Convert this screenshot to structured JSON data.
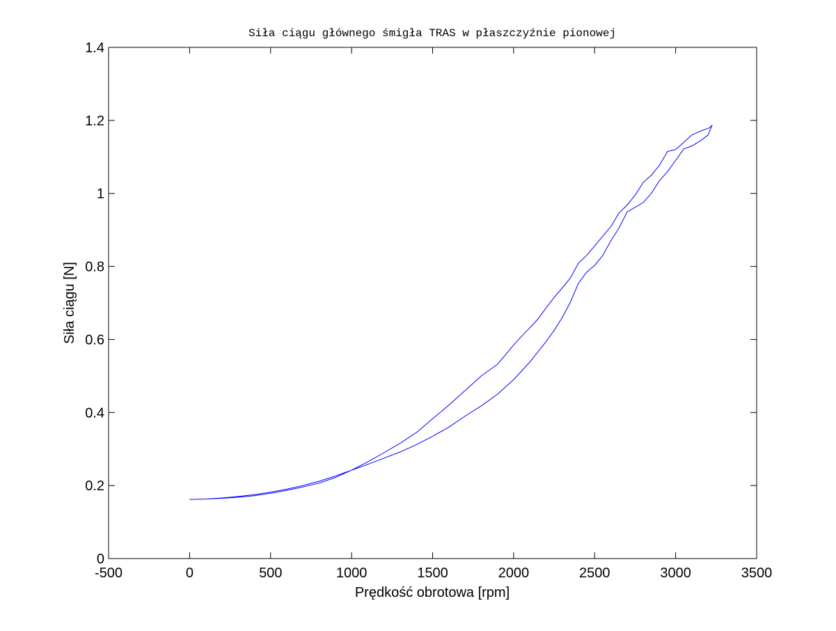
{
  "chart_data": {
    "type": "line",
    "title": "Siła ciągu głównego śmigła TRAS w płaszczyźnie pionowej",
    "xlabel": "Prędkość obrotowa [rpm]",
    "ylabel": "Siła ciągu [N]",
    "xlim": [
      -500,
      3500
    ],
    "ylim": [
      0,
      1.4
    ],
    "xticks": [
      -500,
      0,
      500,
      1000,
      1500,
      2000,
      2500,
      3000,
      3500
    ],
    "xtick_labels": [
      "-500",
      "0",
      "500",
      "1000",
      "1500",
      "2000",
      "2500",
      "3000",
      "3500"
    ],
    "yticks": [
      0,
      0.2,
      0.4,
      0.6,
      0.8,
      1.0,
      1.2,
      1.4
    ],
    "ytick_labels": [
      "0",
      "0.2",
      "0.4",
      "0.6",
      "0.8",
      "1",
      "1.2",
      "1.4"
    ],
    "grid": false,
    "box": true,
    "series": [
      {
        "color": "#0000ff",
        "x": [
          0,
          100,
          200,
          300,
          400,
          500,
          600,
          700,
          800,
          900,
          1000,
          1100,
          1200,
          1300,
          1400,
          1500,
          1600,
          1700,
          1800,
          1900,
          2000,
          2100,
          2200,
          2250,
          2300,
          2350,
          2400,
          2450,
          2500,
          2550,
          2600,
          2650,
          2700,
          2750,
          2800,
          2850,
          2900,
          2950,
          3000,
          3050,
          3100,
          3150,
          3200,
          3225,
          3210,
          3150,
          3100,
          3050,
          3020,
          3000,
          2950,
          2900,
          2850,
          2800,
          2750,
          2700,
          2650,
          2600,
          2550,
          2500,
          2450,
          2400,
          2350,
          2300,
          2250,
          2200,
          2150,
          2100,
          2050,
          2000,
          1950,
          1900,
          1800,
          1700,
          1600,
          1500,
          1400,
          1300,
          1200,
          1100,
          1000,
          900,
          800,
          700,
          600,
          500,
          400,
          300,
          200,
          100,
          0
        ],
        "y": [
          0.162,
          0.163,
          0.166,
          0.17,
          0.175,
          0.182,
          0.19,
          0.2,
          0.212,
          0.226,
          0.242,
          0.258,
          0.275,
          0.292,
          0.312,
          0.335,
          0.36,
          0.39,
          0.418,
          0.45,
          0.49,
          0.538,
          0.594,
          0.625,
          0.66,
          0.702,
          0.754,
          0.784,
          0.803,
          0.83,
          0.87,
          0.905,
          0.949,
          0.962,
          0.975,
          1.0,
          1.035,
          1.06,
          1.09,
          1.122,
          1.13,
          1.143,
          1.16,
          1.187,
          1.18,
          1.17,
          1.16,
          1.14,
          1.128,
          1.12,
          1.115,
          1.077,
          1.05,
          1.03,
          0.995,
          0.968,
          0.946,
          0.909,
          0.883,
          0.856,
          0.83,
          0.809,
          0.768,
          0.741,
          0.715,
          0.686,
          0.656,
          0.632,
          0.609,
          0.585,
          0.558,
          0.532,
          0.5,
          0.46,
          0.42,
          0.383,
          0.345,
          0.316,
          0.29,
          0.265,
          0.242,
          0.222,
          0.207,
          0.196,
          0.187,
          0.179,
          0.172,
          0.168,
          0.165,
          0.163,
          0.162
        ]
      }
    ]
  }
}
